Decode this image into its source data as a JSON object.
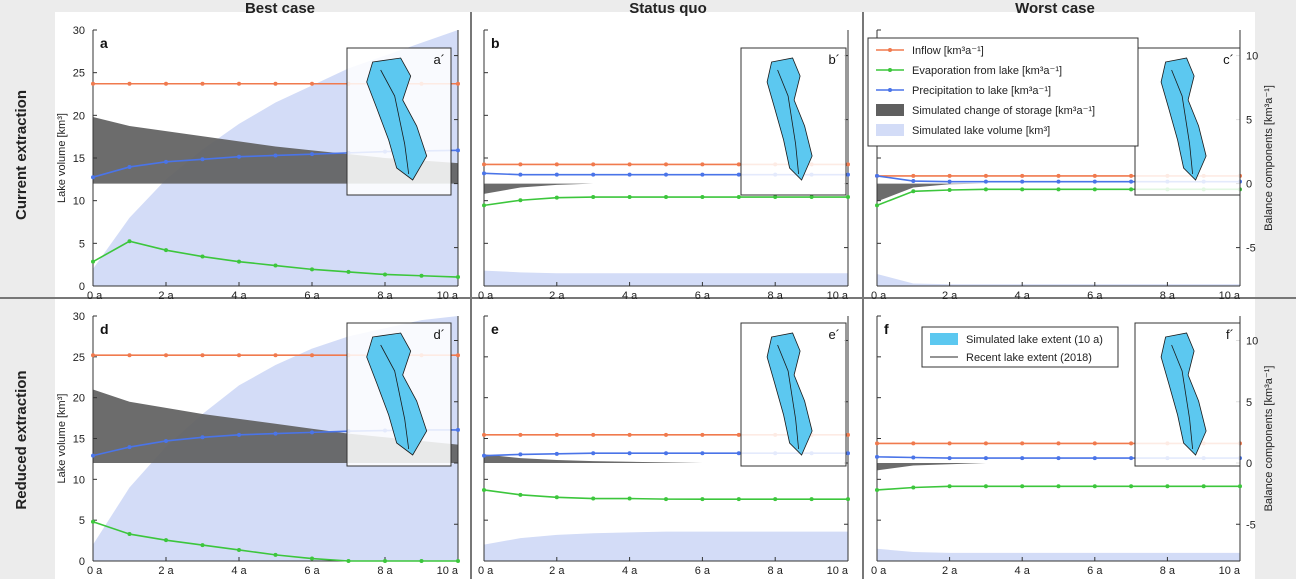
{
  "figure": {
    "columns": [
      "Best case",
      "Status quo",
      "Worst case"
    ],
    "rows": [
      "Current extraction",
      "Reduced extraction"
    ],
    "left_axis_label": "Lake volume [km³]",
    "right_axis_label": "Balance components [km³a⁻¹]",
    "x_tick_labels": [
      "0 a",
      "2 a",
      "4 a",
      "6 a",
      "8 a",
      "10 a"
    ],
    "left_ticks": [
      "0",
      "5",
      "10",
      "15",
      "20",
      "25",
      "30"
    ],
    "right_ticks": [
      "-5",
      "0",
      "5",
      "10"
    ],
    "legend_main": [
      {
        "name": "Inflow [km³a⁻¹]",
        "kind": "line",
        "color": "#f07a4e"
      },
      {
        "name": "Evaporation from lake [km³a⁻¹]",
        "kind": "line",
        "color": "#3cc63c"
      },
      {
        "name": "Precipitation to lake [km³a⁻¹]",
        "kind": "line",
        "color": "#4a74e8"
      },
      {
        "name": "Simulated change of storage [km³a⁻¹]",
        "kind": "box",
        "color": "#5f5f5f"
      },
      {
        "name": "Simulated lake volume [km³]",
        "kind": "box",
        "color": "#d3dcf7"
      }
    ],
    "legend_extent": [
      {
        "name": "Simulated lake extent (10 a)",
        "kind": "box",
        "color": "#5cc8f0"
      },
      {
        "name": "Recent lake extent (2018)",
        "kind": "line",
        "color": "#555555"
      }
    ]
  },
  "chart_data": [
    {
      "type": "line",
      "panel": "a",
      "inset": "a´",
      "row": "Current extraction",
      "column": "Best case",
      "x": [
        0,
        1,
        2,
        3,
        4,
        5,
        6,
        7,
        8,
        9,
        10
      ],
      "xlim": [
        0,
        10
      ],
      "ylim_left": [
        0,
        30
      ],
      "ylim_right": [
        -8,
        12
      ],
      "volume": [
        2,
        8,
        12.5,
        16,
        19,
        21.5,
        23.5,
        25.5,
        27,
        28.5,
        30
      ],
      "series": [
        {
          "name": "Inflow",
          "values": [
            7.8,
            7.8,
            7.8,
            7.8,
            7.8,
            7.8,
            7.8,
            7.8,
            7.8,
            7.8,
            7.8
          ]
        },
        {
          "name": "Precipitation to lake",
          "values": [
            0.5,
            1.3,
            1.7,
            1.9,
            2.1,
            2.2,
            2.3,
            2.4,
            2.5,
            2.55,
            2.6
          ]
        },
        {
          "name": "Evaporation from lake",
          "values": [
            -6.1,
            -4.5,
            -5.2,
            -5.7,
            -6.1,
            -6.4,
            -6.7,
            -6.9,
            -7.1,
            -7.2,
            -7.3
          ]
        },
        {
          "name": "Simulated change of storage",
          "values": [
            5.2,
            4.5,
            4.1,
            3.7,
            3.3,
            2.9,
            2.6,
            2.3,
            2.0,
            1.8,
            1.6
          ]
        }
      ]
    },
    {
      "type": "line",
      "panel": "b",
      "inset": "b´",
      "row": "Current extraction",
      "column": "Status quo",
      "x": [
        0,
        1,
        2,
        3,
        4,
        5,
        6,
        7,
        8,
        9,
        10
      ],
      "xlim": [
        0,
        10
      ],
      "ylim_left": [
        0,
        30
      ],
      "ylim_right": [
        -8,
        12
      ],
      "volume": [
        1.8,
        1.6,
        1.5,
        1.5,
        1.5,
        1.5,
        1.5,
        1.5,
        1.5,
        1.5,
        1.5
      ],
      "series": [
        {
          "name": "Inflow",
          "values": [
            1.5,
            1.5,
            1.5,
            1.5,
            1.5,
            1.5,
            1.5,
            1.5,
            1.5,
            1.5,
            1.5
          ]
        },
        {
          "name": "Precipitation to lake",
          "values": [
            0.8,
            0.7,
            0.7,
            0.7,
            0.7,
            0.7,
            0.7,
            0.7,
            0.7,
            0.7,
            0.7
          ]
        },
        {
          "name": "Evaporation from lake",
          "values": [
            -1.7,
            -1.3,
            -1.1,
            -1.05,
            -1.05,
            -1.05,
            -1.05,
            -1.05,
            -1.05,
            -1.05,
            -1.05
          ]
        },
        {
          "name": "Simulated change of storage",
          "values": [
            -0.8,
            -0.3,
            -0.1,
            0,
            0,
            0,
            0,
            0,
            0,
            0,
            0
          ]
        }
      ]
    },
    {
      "type": "line",
      "panel": "c",
      "inset": "c´",
      "row": "Current extraction",
      "column": "Worst case",
      "x": [
        0,
        1,
        2,
        3,
        4,
        5,
        6,
        7,
        8,
        9,
        10
      ],
      "xlim": [
        0,
        10
      ],
      "ylim_left": [
        0,
        30
      ],
      "ylim_right": [
        -8,
        12
      ],
      "volume": [
        1.4,
        0.3,
        0.2,
        0.2,
        0.2,
        0.2,
        0.2,
        0.2,
        0.2,
        0.2,
        0.2
      ],
      "series": [
        {
          "name": "Inflow",
          "values": [
            0.6,
            0.6,
            0.6,
            0.6,
            0.6,
            0.6,
            0.6,
            0.6,
            0.6,
            0.6,
            0.6
          ]
        },
        {
          "name": "Precipitation to lake",
          "values": [
            0.6,
            0.2,
            0.15,
            0.15,
            0.15,
            0.15,
            0.15,
            0.15,
            0.15,
            0.15,
            0.15
          ]
        },
        {
          "name": "Evaporation from lake",
          "values": [
            -1.7,
            -0.6,
            -0.5,
            -0.45,
            -0.45,
            -0.45,
            -0.45,
            -0.45,
            -0.45,
            -0.45,
            -0.45
          ]
        },
        {
          "name": "Simulated change of storage",
          "values": [
            -1.4,
            -0.3,
            -0.05,
            0,
            0,
            0,
            0,
            0,
            0,
            0,
            0
          ]
        }
      ]
    },
    {
      "type": "line",
      "panel": "d",
      "inset": "d´",
      "row": "Reduced extraction",
      "column": "Best case",
      "x": [
        0,
        1,
        2,
        3,
        4,
        5,
        6,
        7,
        8,
        9,
        10
      ],
      "xlim": [
        0,
        10
      ],
      "ylim_left": [
        0,
        30
      ],
      "ylim_right": [
        -8,
        12
      ],
      "volume": [
        2,
        9,
        14,
        18,
        21.5,
        24,
        26,
        27.5,
        28.5,
        29.5,
        30
      ],
      "series": [
        {
          "name": "Inflow",
          "values": [
            8.8,
            8.8,
            8.8,
            8.8,
            8.8,
            8.8,
            8.8,
            8.8,
            8.8,
            8.8,
            8.8
          ]
        },
        {
          "name": "Precipitation to lake",
          "values": [
            0.6,
            1.3,
            1.8,
            2.1,
            2.3,
            2.4,
            2.5,
            2.6,
            2.65,
            2.7,
            2.7
          ]
        },
        {
          "name": "Evaporation from lake",
          "values": [
            -4.8,
            -5.8,
            -6.3,
            -6.7,
            -7.1,
            -7.5,
            -7.8,
            -8.0,
            -8.0,
            -8.0,
            -8.0
          ]
        },
        {
          "name": "Simulated change of storage",
          "values": [
            6.0,
            5.0,
            4.5,
            4.0,
            3.6,
            3.2,
            2.8,
            2.4,
            2.1,
            1.8,
            1.5
          ]
        }
      ]
    },
    {
      "type": "line",
      "panel": "e",
      "inset": "e´",
      "row": "Reduced extraction",
      "column": "Status quo",
      "x": [
        0,
        1,
        2,
        3,
        4,
        5,
        6,
        7,
        8,
        9,
        10
      ],
      "xlim": [
        0,
        10
      ],
      "ylim_left": [
        0,
        30
      ],
      "ylim_right": [
        -8,
        12
      ],
      "volume": [
        2.0,
        2.8,
        3.2,
        3.4,
        3.5,
        3.6,
        3.6,
        3.6,
        3.6,
        3.6,
        3.6
      ],
      "series": [
        {
          "name": "Inflow",
          "values": [
            2.3,
            2.3,
            2.3,
            2.3,
            2.3,
            2.3,
            2.3,
            2.3,
            2.3,
            2.3,
            2.3
          ]
        },
        {
          "name": "Precipitation to lake",
          "values": [
            0.6,
            0.7,
            0.75,
            0.8,
            0.8,
            0.8,
            0.8,
            0.8,
            0.8,
            0.8,
            0.8
          ]
        },
        {
          "name": "Evaporation from lake",
          "values": [
            -2.2,
            -2.6,
            -2.8,
            -2.9,
            -2.9,
            -2.95,
            -2.95,
            -2.95,
            -2.95,
            -2.95,
            -2.95
          ]
        },
        {
          "name": "Simulated change of storage",
          "values": [
            0.7,
            0.4,
            0.25,
            0.15,
            0.1,
            0.05,
            0,
            0,
            0,
            0,
            0
          ]
        }
      ]
    },
    {
      "type": "line",
      "panel": "f",
      "inset": "f´",
      "row": "Reduced extraction",
      "column": "Worst case",
      "x": [
        0,
        1,
        2,
        3,
        4,
        5,
        6,
        7,
        8,
        9,
        10
      ],
      "xlim": [
        0,
        10
      ],
      "ylim_left": [
        0,
        30
      ],
      "ylim_right": [
        -8,
        12
      ],
      "volume": [
        1.5,
        1.1,
        1.0,
        1.0,
        1.0,
        1.0,
        1.0,
        1.0,
        1.0,
        1.0,
        1.0
      ],
      "series": [
        {
          "name": "Inflow",
          "values": [
            1.6,
            1.6,
            1.6,
            1.6,
            1.6,
            1.6,
            1.6,
            1.6,
            1.6,
            1.6,
            1.6
          ]
        },
        {
          "name": "Precipitation to lake",
          "values": [
            0.5,
            0.45,
            0.4,
            0.4,
            0.4,
            0.4,
            0.4,
            0.4,
            0.4,
            0.4,
            0.4
          ]
        },
        {
          "name": "Evaporation from lake",
          "values": [
            -2.2,
            -2.0,
            -1.9,
            -1.9,
            -1.9,
            -1.9,
            -1.9,
            -1.9,
            -1.9,
            -1.9,
            -1.9
          ]
        },
        {
          "name": "Simulated change of storage",
          "values": [
            -0.6,
            -0.2,
            -0.1,
            0,
            0,
            0,
            0,
            0,
            0,
            0,
            0
          ]
        }
      ]
    }
  ]
}
